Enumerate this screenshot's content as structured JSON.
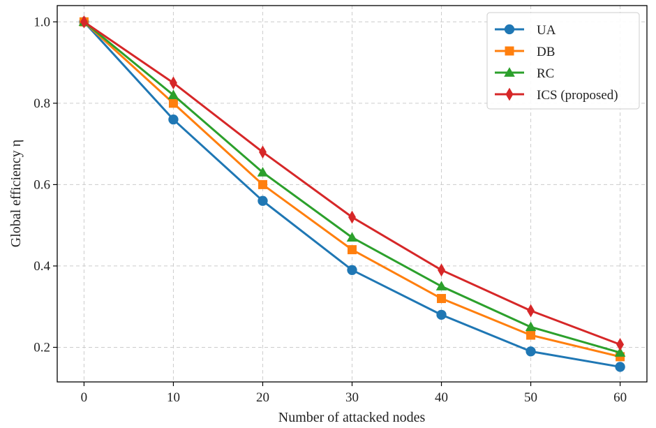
{
  "chart_data": {
    "type": "line",
    "title": "",
    "xlabel": "Number of attacked nodes",
    "ylabel": "Global efficiency η",
    "xlim": [
      -3,
      63
    ],
    "ylim": [
      0.115,
      1.04
    ],
    "x": [
      0,
      10,
      20,
      30,
      40,
      50,
      60
    ],
    "xticks": [
      0,
      10,
      20,
      30,
      40,
      50,
      60
    ],
    "yticks": [
      0.2,
      0.4,
      0.6,
      0.8,
      1.0
    ],
    "xtick_labels": [
      "0",
      "10",
      "20",
      "30",
      "40",
      "50",
      "60"
    ],
    "ytick_labels": [
      "0.2",
      "0.4",
      "0.6",
      "0.8",
      "1.0"
    ],
    "grid": true,
    "legend_position": "top-right",
    "series": [
      {
        "name": "UA",
        "color": "#1f77b4",
        "marker": "circle",
        "values": [
          1.0,
          0.76,
          0.56,
          0.39,
          0.28,
          0.19,
          0.152
        ]
      },
      {
        "name": "DB",
        "color": "#ff7f0e",
        "marker": "square",
        "values": [
          1.0,
          0.8,
          0.6,
          0.44,
          0.32,
          0.23,
          0.177
        ]
      },
      {
        "name": "RC",
        "color": "#2ca02c",
        "marker": "triangle",
        "values": [
          1.0,
          0.82,
          0.63,
          0.47,
          0.35,
          0.25,
          0.187
        ]
      },
      {
        "name": "ICS (proposed)",
        "color": "#d62728",
        "marker": "diamond",
        "values": [
          1.0,
          0.85,
          0.68,
          0.52,
          0.39,
          0.29,
          0.207
        ]
      }
    ]
  }
}
